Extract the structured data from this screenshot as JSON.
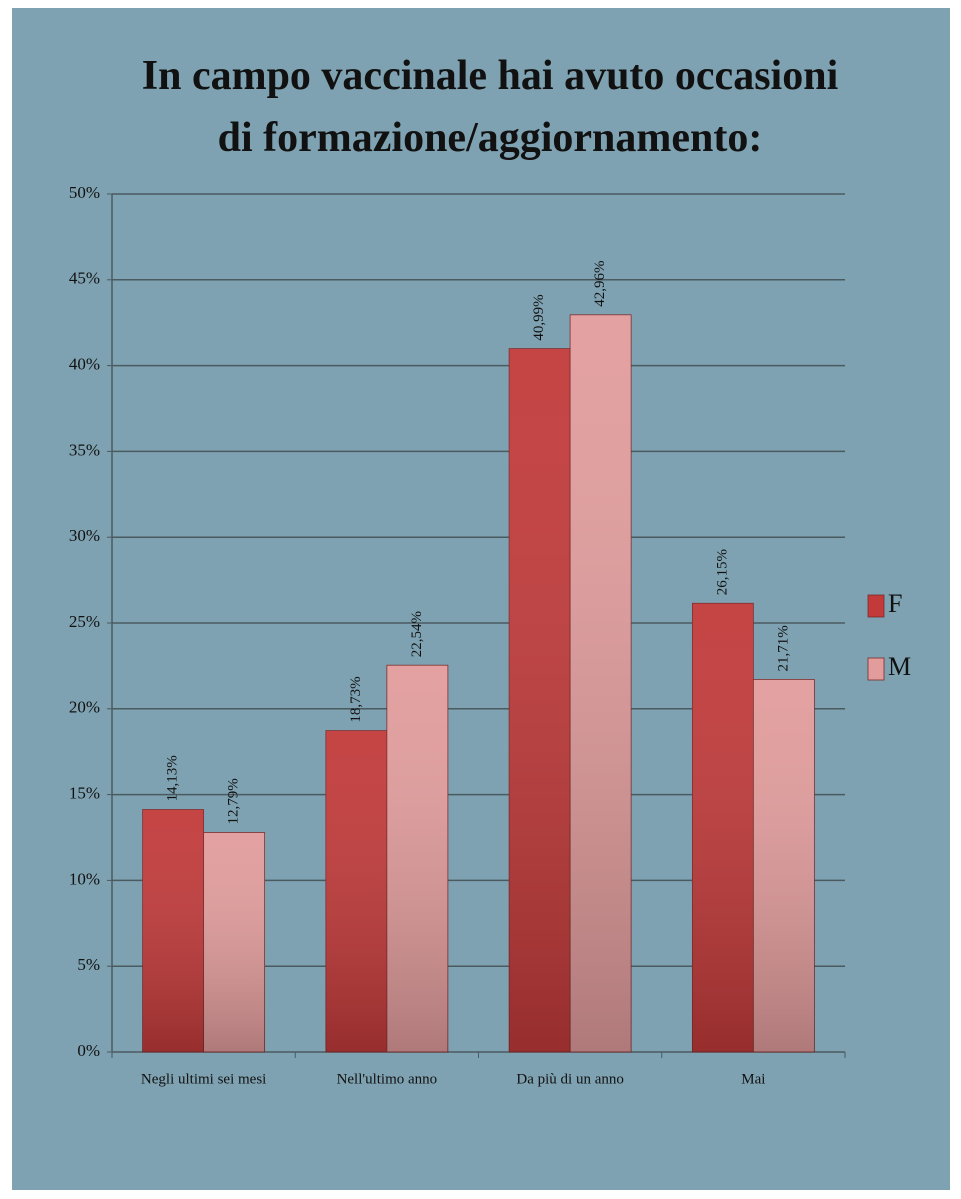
{
  "chart_data": {
    "type": "bar",
    "title": "In campo vaccinale hai avuto occasioni di formazione/aggiornamento:",
    "categories": [
      "Negli ultimi sei mesi",
      "Nell'ultimo anno",
      "Da più di un anno",
      "Mai"
    ],
    "series": [
      {
        "name": "F",
        "color": "#c23a3a",
        "values": [
          14.13,
          18.73,
          40.99,
          26.15
        ],
        "value_labels": [
          "14,13%",
          "18,73%",
          "40,99%",
          "26,15%"
        ]
      },
      {
        "name": "M",
        "color": "#e29c9c",
        "values": [
          12.79,
          22.54,
          42.96,
          21.71
        ],
        "value_labels": [
          "12,79%",
          "22,54%",
          "42,96%",
          "21,71%"
        ]
      }
    ],
    "ylim": [
      0,
      50
    ],
    "yticks": [
      {
        "value": 0,
        "label": "0%"
      },
      {
        "value": 5,
        "label": "5%"
      },
      {
        "value": 10,
        "label": "10%"
      },
      {
        "value": 15,
        "label": "15%"
      },
      {
        "value": 20,
        "label": "20%"
      },
      {
        "value": 25,
        "label": "25%"
      },
      {
        "value": 30,
        "label": "30%"
      },
      {
        "value": 35,
        "label": "35%"
      },
      {
        "value": 40,
        "label": "40%"
      },
      {
        "value": 45,
        "label": "45%"
      },
      {
        "value": 50,
        "label": "50%"
      }
    ],
    "grid": true,
    "legend": "right"
  }
}
